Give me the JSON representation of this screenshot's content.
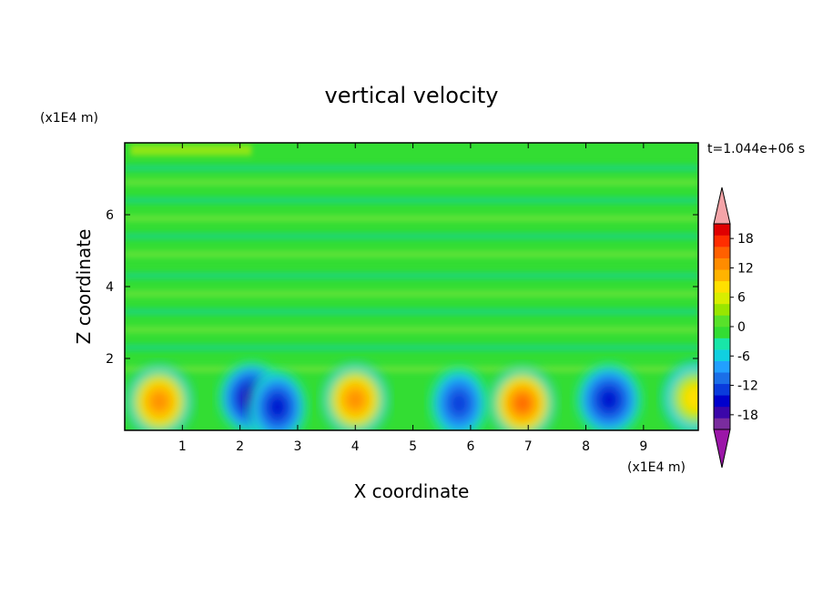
{
  "chart_data": {
    "type": "heatmap",
    "title": "vertical velocity",
    "xlabel": "X coordinate",
    "ylabel": "Z coordinate",
    "x_unit": "(x1E4 m)",
    "y_unit": "(x1E4 m)",
    "time_label": "t=1.044e+06 s",
    "xlim": [
      0,
      9.95
    ],
    "ylim": [
      0,
      8
    ],
    "x_ticks": [
      "1",
      "2",
      "3",
      "4",
      "5",
      "6",
      "7",
      "8",
      "9"
    ],
    "y_ticks": [
      "2",
      "4",
      "6"
    ],
    "colorbar": {
      "ticks": [
        "18",
        "12",
        "6",
        "0",
        "-6",
        "-12",
        "-18"
      ],
      "levels": [
        -21,
        21
      ],
      "extend": "both"
    },
    "colors": {
      "background_field": "#33dd33",
      "positive_core": "#ff7700",
      "negative_core": "#0000cc"
    },
    "features": [
      {
        "label": "updraft",
        "x": 0.6,
        "z": 0.8,
        "peak": 12
      },
      {
        "label": "downdraft",
        "x": 2.2,
        "z": 0.9,
        "peak": -14
      },
      {
        "label": "downdraft",
        "x": 2.65,
        "z": 0.65,
        "peak": -12
      },
      {
        "label": "updraft",
        "x": 4.0,
        "z": 0.85,
        "peak": 13
      },
      {
        "label": "downdraft",
        "x": 5.8,
        "z": 0.75,
        "peak": -10
      },
      {
        "label": "updraft",
        "x": 6.9,
        "z": 0.75,
        "peak": 15
      },
      {
        "label": "downdraft",
        "x": 8.4,
        "z": 0.85,
        "peak": -13
      },
      {
        "label": "updraft",
        "x": 9.9,
        "z": 0.9,
        "peak": 7
      }
    ]
  }
}
